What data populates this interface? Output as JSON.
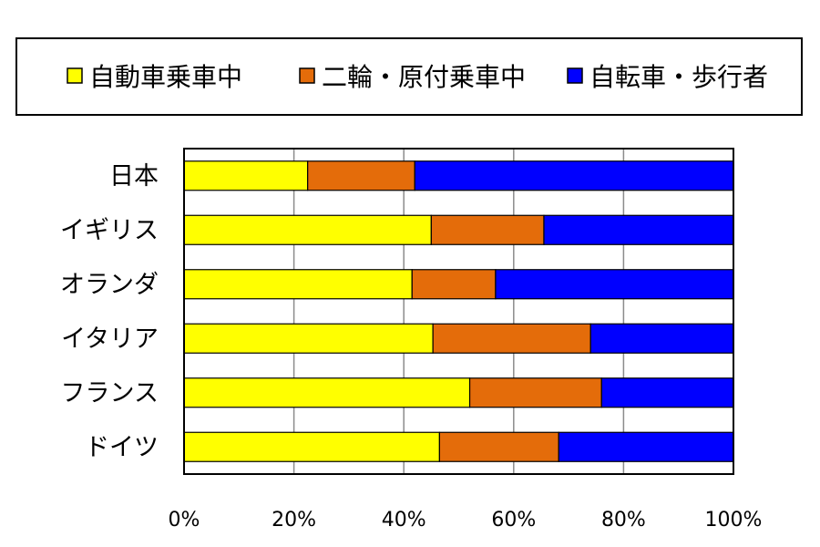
{
  "chart_data": {
    "type": "bar",
    "orientation": "horizontal",
    "stacked": true,
    "percent_stacked": true,
    "categories": [
      "日本",
      "イギリス",
      "オランダ",
      "イタリア",
      "フランス",
      "ドイツ"
    ],
    "series": [
      {
        "name": "自動車乗車中",
        "color": "#FFFF00",
        "values": [
          22.5,
          45,
          41.5,
          45.3,
          52,
          46.5
        ]
      },
      {
        "name": "二輪・原付乗車中",
        "color": "#E46C0A",
        "values": [
          19.5,
          20.5,
          15.2,
          28.7,
          24,
          21.7
        ]
      },
      {
        "name": "自転車・歩行者",
        "color": "#0000FF",
        "values": [
          58,
          34.5,
          43.3,
          26,
          24,
          31.8
        ]
      }
    ],
    "xlim": [
      0,
      100
    ],
    "x_ticks": [
      "0%",
      "20%",
      "40%",
      "60%",
      "80%",
      "100%"
    ],
    "grid": "vertical",
    "legend": "top"
  }
}
